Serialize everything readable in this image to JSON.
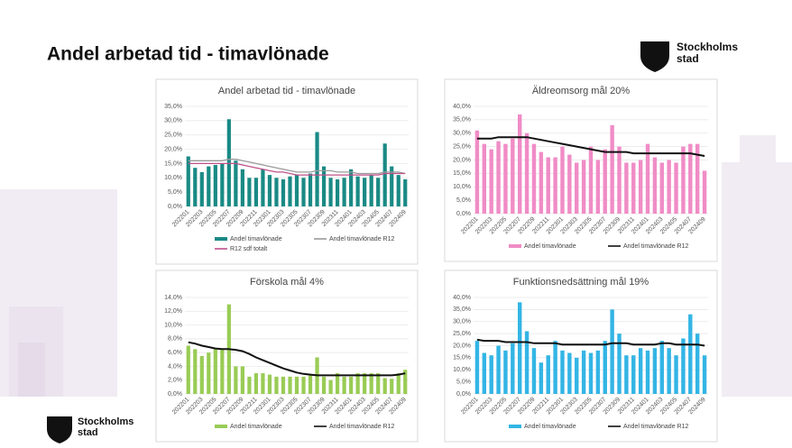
{
  "header": {
    "title": "Andel arbetad tid - timavlönade"
  },
  "logo": {
    "line1": "Stockholms",
    "line2": "stad"
  },
  "chart_data": [
    {
      "type": "combo",
      "title": "Andel arbetad tid - timavlönade",
      "categories": [
        "202201",
        null,
        "202203",
        null,
        "202205",
        null,
        "202207",
        null,
        "202209",
        null,
        "202211",
        null,
        "202301",
        null,
        "202303",
        null,
        "202305",
        null,
        "202307",
        null,
        "202309",
        null,
        "202311",
        null,
        "202401",
        null,
        "202403",
        null,
        "202405",
        null,
        "202407",
        null,
        "202409"
      ],
      "ylim": [
        0,
        35
      ],
      "yticks": [
        {
          "value": 0,
          "label": "0,0%"
        },
        {
          "value": 5,
          "label": "5,0%"
        },
        {
          "value": 10,
          "label": "10,0%"
        },
        {
          "value": 15,
          "label": "15,0%"
        },
        {
          "value": 20,
          "label": "20,0%"
        },
        {
          "value": 25,
          "label": "25,0%"
        },
        {
          "value": 30,
          "label": "30,0%"
        },
        {
          "value": 35,
          "label": "35,0%"
        }
      ],
      "series": [
        {
          "name": "Andel timavlönade",
          "type": "bar",
          "color": "#1a8a85",
          "values": [
            17.5,
            13.5,
            12,
            14,
            14.5,
            15,
            30.5,
            16,
            13,
            10,
            10,
            13,
            11,
            10,
            9.5,
            10.5,
            11,
            10,
            11.5,
            26,
            14,
            10,
            9.5,
            10,
            13,
            10.5,
            10,
            11,
            10,
            22,
            14,
            11,
            9.5
          ]
        },
        {
          "name": "Andel timavlönade R12",
          "type": "line",
          "color": "#9a9a9a",
          "values": [
            16,
            16,
            16,
            16,
            16,
            16,
            16.5,
            16.5,
            16,
            15.5,
            15,
            14.5,
            14,
            13.5,
            13,
            12.5,
            12,
            12,
            12,
            12.5,
            12.5,
            12.5,
            12,
            12,
            12,
            11.5,
            11.5,
            11.5,
            11.5,
            12,
            12,
            12,
            11.5
          ]
        },
        {
          "name": "R12 sdf totalt",
          "type": "line",
          "color": "#c0508a",
          "values": [
            15,
            15,
            15,
            15,
            15,
            15,
            15,
            15,
            14.5,
            14,
            13.5,
            13,
            12.5,
            12,
            12,
            11.5,
            11,
            11,
            11,
            11,
            11,
            11,
            11,
            11,
            11,
            11,
            11,
            11,
            11,
            11.5,
            11.5,
            11.5,
            11.5
          ]
        }
      ]
    },
    {
      "type": "combo",
      "title": "Äldreomsorg mål 20%",
      "categories": [
        "202201",
        null,
        "202203",
        null,
        "202205",
        null,
        "202207",
        null,
        "202209",
        null,
        "202211",
        null,
        "202301",
        null,
        "202303",
        null,
        "202305",
        null,
        "202307",
        null,
        "202309",
        null,
        "202311",
        null,
        "202401",
        null,
        "202403",
        null,
        "202405",
        null,
        "202407",
        null,
        "202409"
      ],
      "ylim": [
        0,
        40
      ],
      "yticks": [
        {
          "value": 0,
          "label": "0,0%"
        },
        {
          "value": 5,
          "label": "5,0%"
        },
        {
          "value": 10,
          "label": "10,0%"
        },
        {
          "value": 15,
          "label": "15,0%"
        },
        {
          "value": 20,
          "label": "20,0%"
        },
        {
          "value": 25,
          "label": "25,0%"
        },
        {
          "value": 30,
          "label": "30,0%"
        },
        {
          "value": 35,
          "label": "35,0%"
        },
        {
          "value": 40,
          "label": "40,0%"
        }
      ],
      "series": [
        {
          "name": "Andel timavlönade",
          "type": "bar",
          "color": "#f08cc6",
          "values": [
            31,
            26,
            24,
            27,
            26,
            28,
            37,
            30,
            26,
            23,
            21,
            21,
            25,
            22,
            19,
            20,
            25,
            20,
            24,
            33,
            25,
            19,
            19,
            20,
            26,
            21,
            19,
            20,
            19,
            25,
            26,
            26,
            16
          ]
        },
        {
          "name": "Andel timavlönade R12",
          "type": "line",
          "color": "#111111",
          "values": [
            28,
            28,
            28,
            28.5,
            28.5,
            28.5,
            28.5,
            28.5,
            28,
            27.5,
            27,
            26.5,
            26,
            25.5,
            25,
            24.5,
            24,
            23.5,
            23,
            23,
            23,
            23,
            22.5,
            22.5,
            22.5,
            22.5,
            22.5,
            22.5,
            22.5,
            22.5,
            22.5,
            22,
            21.5
          ]
        }
      ]
    },
    {
      "type": "combo",
      "title": "Förskola mål 4%",
      "categories": [
        "202201",
        null,
        "202203",
        null,
        "202205",
        null,
        "202207",
        null,
        "202209",
        null,
        "202211",
        null,
        "202301",
        null,
        "202303",
        null,
        "202305",
        null,
        "202307",
        null,
        "202309",
        null,
        "202311",
        null,
        "202401",
        null,
        "202403",
        null,
        "202405",
        null,
        "202407",
        null,
        "202409"
      ],
      "ylim": [
        0,
        14
      ],
      "yticks": [
        {
          "value": 0,
          "label": "0,0%"
        },
        {
          "value": 2,
          "label": "2,0%"
        },
        {
          "value": 4,
          "label": "4,0%"
        },
        {
          "value": 6,
          "label": "6,0%"
        },
        {
          "value": 8,
          "label": "8,0%"
        },
        {
          "value": 10,
          "label": "10,0%"
        },
        {
          "value": 12,
          "label": "12,0%"
        },
        {
          "value": 14,
          "label": "14,0%"
        }
      ],
      "series": [
        {
          "name": "Andel timavlönade",
          "type": "bar",
          "color": "#99cc55",
          "values": [
            7,
            6.5,
            5.5,
            6,
            6.5,
            6.5,
            13,
            4,
            4,
            2.5,
            3,
            3,
            2.8,
            2.5,
            2.5,
            2.5,
            2.5,
            2.5,
            2.7,
            5.3,
            2.5,
            2,
            3,
            2.5,
            2.5,
            3,
            3,
            3,
            3,
            2.3,
            2.2,
            3,
            3.5
          ]
        },
        {
          "name": "Andel timavlönade R12",
          "type": "line",
          "color": "#111111",
          "values": [
            7.5,
            7.3,
            7,
            6.8,
            6.6,
            6.5,
            6.5,
            6.4,
            6.2,
            5.8,
            5.3,
            4.9,
            4.5,
            4.1,
            3.7,
            3.4,
            3.1,
            2.9,
            2.8,
            2.7,
            2.7,
            2.7,
            2.7,
            2.7,
            2.7,
            2.7,
            2.7,
            2.7,
            2.7,
            2.7,
            2.7,
            2.8,
            3.0
          ]
        }
      ]
    },
    {
      "type": "combo",
      "title": "Funktionsnedsättning mål 19%",
      "categories": [
        "202201",
        null,
        "202203",
        null,
        "202205",
        null,
        "202207",
        null,
        "202209",
        null,
        "202211",
        null,
        "202301",
        null,
        "202303",
        null,
        "202305",
        null,
        "202307",
        null,
        "202309",
        null,
        "202311",
        null,
        "202401",
        null,
        "202403",
        null,
        "202405",
        null,
        "202407",
        null,
        "202409"
      ],
      "ylim": [
        0,
        40
      ],
      "yticks": [
        {
          "value": 0,
          "label": "0,0%"
        },
        {
          "value": 5,
          "label": "5,0%"
        },
        {
          "value": 10,
          "label": "10,0%"
        },
        {
          "value": 15,
          "label": "15,0%"
        },
        {
          "value": 20,
          "label": "20,0%"
        },
        {
          "value": 25,
          "label": "25,0%"
        },
        {
          "value": 30,
          "label": "30,0%"
        },
        {
          "value": 35,
          "label": "35,0%"
        },
        {
          "value": 40,
          "label": "40,0%"
        }
      ],
      "series": [
        {
          "name": "Andel timavlönade",
          "type": "bar",
          "color": "#33b5e5",
          "values": [
            22,
            17,
            16,
            20,
            18,
            21,
            38,
            26,
            19,
            13,
            16,
            22,
            18,
            17,
            15,
            18,
            17,
            18,
            22,
            35,
            25,
            16,
            16,
            19,
            18,
            19,
            22,
            19,
            16,
            23,
            33,
            25,
            16
          ]
        },
        {
          "name": "Andel timavlönade R12",
          "type": "line",
          "color": "#111111",
          "values": [
            22.5,
            22,
            22,
            22,
            21.5,
            21.5,
            21.5,
            21.5,
            21,
            21,
            21,
            21,
            20.5,
            20.5,
            20.5,
            20.5,
            20.5,
            20.5,
            20.5,
            21,
            21,
            21,
            20.5,
            20.5,
            20.5,
            20.5,
            21,
            21,
            20.5,
            20.5,
            20.5,
            20.5,
            20
          ]
        }
      ]
    }
  ]
}
